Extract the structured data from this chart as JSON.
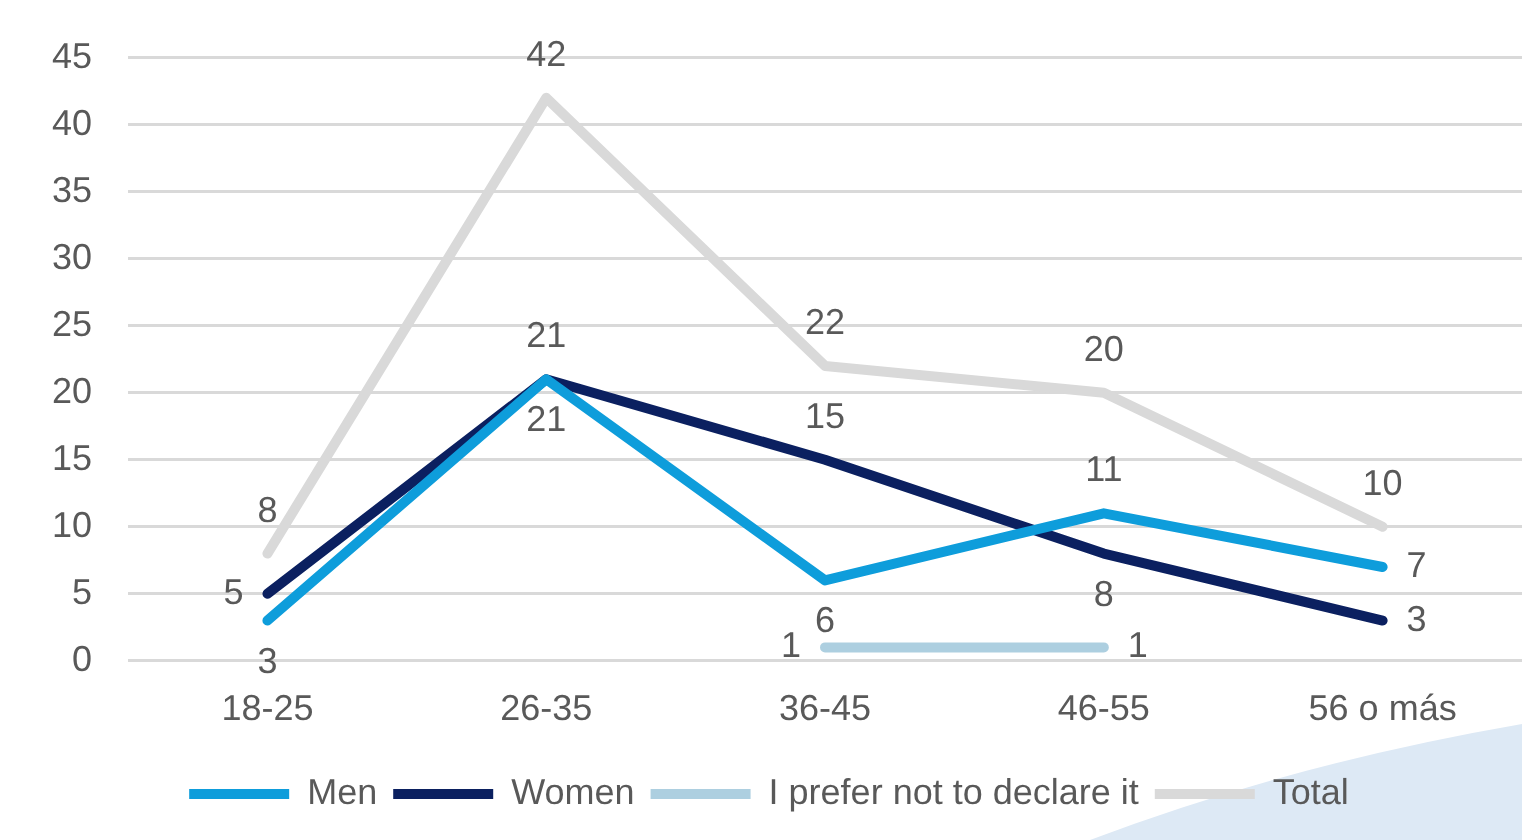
{
  "chart_data": {
    "type": "line",
    "categories": [
      "18-25",
      "26-35",
      "36-45",
      "46-55",
      "56 o más"
    ],
    "series": [
      {
        "name": "Men",
        "color": "#0e9ddb",
        "values": [
          3,
          21,
          6,
          11,
          7
        ]
      },
      {
        "name": "Women",
        "color": "#0b2060",
        "values": [
          5,
          21,
          15,
          8,
          3
        ]
      },
      {
        "name": "I prefer not to declare it",
        "color": "#adcfe0",
        "values": [
          null,
          null,
          1,
          1,
          null
        ]
      },
      {
        "name": "Total",
        "color": "#d9d9d9",
        "values": [
          8,
          42,
          22,
          20,
          10
        ]
      }
    ],
    "ylim": [
      0,
      45
    ],
    "yticks": [
      0,
      5,
      10,
      15,
      20,
      25,
      30,
      35,
      40,
      45
    ],
    "grid": "y",
    "legend": "bottom",
    "marker": "none",
    "data_labels": true
  }
}
